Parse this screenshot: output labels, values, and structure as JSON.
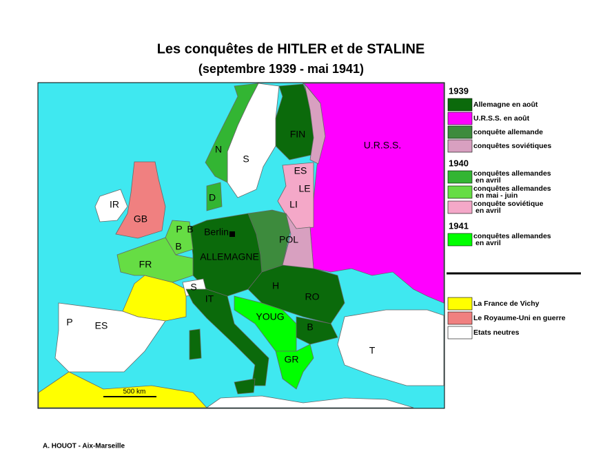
{
  "header": {
    "title": "Les conquêtes de HITLER et de STALINE",
    "subtitle": "(septembre 1939 - mai 1941)"
  },
  "map": {
    "labels": [
      "N",
      "S",
      "FIN",
      "U.R.S.S.",
      "ES",
      "LE",
      "LI",
      "D",
      "IR",
      "GB",
      "P",
      "B",
      "Berlin",
      "B",
      "POL",
      "ALLEMAGNE",
      "FR",
      "S",
      "H",
      "IT",
      "RO",
      "YOUG",
      "B",
      "P",
      "ES",
      "T",
      "GR"
    ],
    "scale": "500 km"
  },
  "legend": {
    "sections": [
      {
        "year": "1939",
        "items": [
          {
            "lines": [
              "Allemagne en août"
            ],
            "color": "#0b6a0b"
          },
          {
            "lines": [
              "U.R.S.S. en août"
            ],
            "color": "#ff00ff"
          },
          {
            "lines": [
              "conquête allemande"
            ],
            "color": "#3d8b3d"
          },
          {
            "lines": [
              "conquêtes soviétiques"
            ],
            "color": "#d8a0c0"
          }
        ]
      },
      {
        "year": "1940",
        "items": [
          {
            "lines": [
              "conquêtes allemandes",
              "en avril"
            ],
            "color": "#33b533"
          },
          {
            "lines": [
              "conquêtes allemandes",
              "en mai - juin"
            ],
            "color": "#66dd44"
          },
          {
            "lines": [
              "conquête soviétique",
              "en avril"
            ],
            "color": "#f4a8c8"
          }
        ]
      },
      {
        "year": "1941",
        "items": [
          {
            "lines": [
              "conquêtes allemandes",
              "en avril"
            ],
            "color": "#00ff00"
          }
        ]
      }
    ],
    "other": [
      {
        "lines": [
          "La France de Vichy"
        ],
        "color": "#ffff00"
      },
      {
        "lines": [
          "Le Royaume-Uni en guerre"
        ],
        "color": "#f08080"
      },
      {
        "lines": [
          "Etats neutres"
        ],
        "color": "#ffffff"
      }
    ]
  },
  "footer": {
    "credit": "A. HOUOT - Aix-Marseille"
  }
}
